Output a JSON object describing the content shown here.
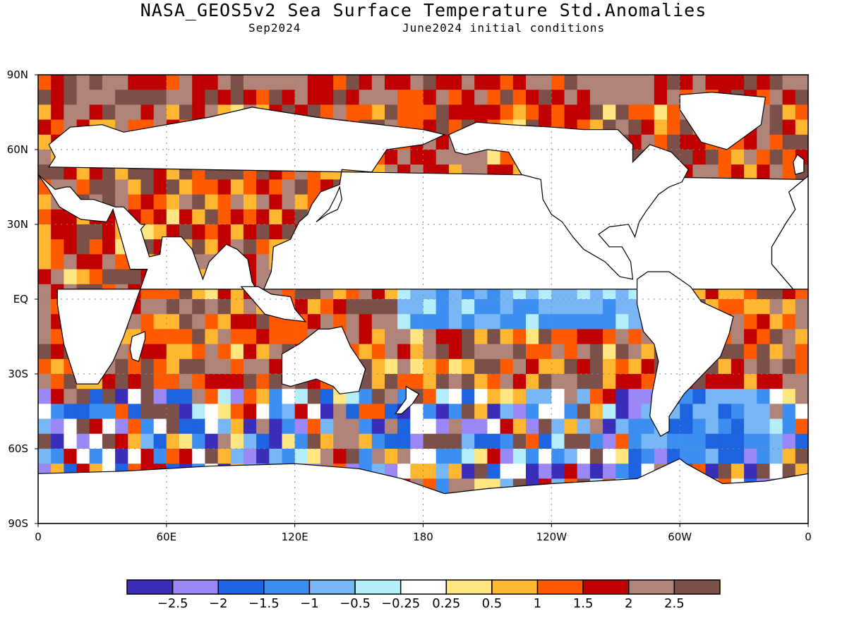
{
  "title": "NASA_GEOS5v2 Sea Surface Temperature Std.Anomalies",
  "subtitle_left": "Sep2024",
  "subtitle_right": "June2024 initial conditions",
  "map": {
    "projection": "cylindrical equidistant",
    "lon_range": [
      0,
      360
    ],
    "lat_range": [
      -90,
      90
    ],
    "gridlines": true,
    "land_color": "#ffffff",
    "lat_ticks": [
      {
        "lat": 90,
        "label": "90N"
      },
      {
        "lat": 60,
        "label": "60N"
      },
      {
        "lat": 30,
        "label": "30N"
      },
      {
        "lat": 0,
        "label": "EQ"
      },
      {
        "lat": -30,
        "label": "30S"
      },
      {
        "lat": -60,
        "label": "60S"
      },
      {
        "lat": -90,
        "label": "90S"
      }
    ],
    "lon_ticks": [
      {
        "lon": 0,
        "label": "0"
      },
      {
        "lon": 60,
        "label": "60E"
      },
      {
        "lon": 120,
        "label": "120E"
      },
      {
        "lon": 180,
        "label": "180"
      },
      {
        "lon": 240,
        "label": "120W"
      },
      {
        "lon": 300,
        "label": "60W"
      },
      {
        "lon": 360,
        "label": "0"
      }
    ]
  },
  "colorbar": {
    "colors": [
      "#3a2db8",
      "#9b87f5",
      "#1e63e0",
      "#3c8ff0",
      "#78b6f5",
      "#b4eefa",
      "#ffffff",
      "#ffe680",
      "#ffb732",
      "#ff5a00",
      "#c00000",
      "#b08478",
      "#7a5048"
    ],
    "labels": [
      "−2.5",
      "−2",
      "−1.5",
      "−1",
      "−0.5",
      "−0.25",
      "0.25",
      "0.5",
      "1",
      "1.5",
      "2",
      "2.5"
    ]
  }
}
